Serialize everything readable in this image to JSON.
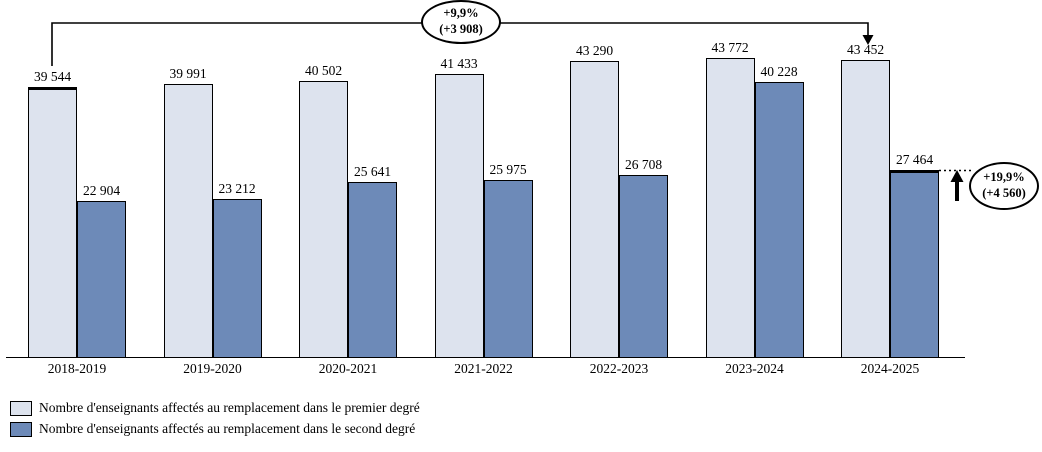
{
  "chart_data": {
    "type": "bar",
    "title": "",
    "xlabel": "",
    "ylabel": "",
    "ylim": [
      0,
      45000
    ],
    "grid": false,
    "legend_position": "bottom-left",
    "categories": [
      "2018-2019",
      "2019-2020",
      "2020-2021",
      "2021-2022",
      "2022-2023",
      "2023-2024",
      "2024-2025"
    ],
    "series": [
      {
        "name": "Nombre d'enseignants affectés au remplacement dans le premier degré",
        "color": "#dde3ee",
        "values": [
          39544,
          39991,
          40502,
          41433,
          43290,
          43772,
          43452
        ],
        "labels": [
          "39 544",
          "39 991",
          "40 502",
          "41 433",
          "43 290",
          "43 772",
          "43 452"
        ]
      },
      {
        "name": "Nombre d'enseignants affectés au remplacement dans le second degré",
        "color": "#6d8ab8",
        "values": [
          22904,
          23212,
          25641,
          25975,
          26708,
          40228,
          27464
        ],
        "labels": [
          "22 904",
          "23 212",
          "25 641",
          "25 975",
          "26 708",
          "40 228",
          "27 464"
        ]
      }
    ],
    "annotations": [
      {
        "id": "premier-degre-evolution",
        "line1": "+9,9%",
        "line2": "(+3 908)",
        "from_category": "2018-2019",
        "to_category": "2024-2025",
        "series": "premier degré"
      },
      {
        "id": "second-degre-evolution",
        "line1": "+19,9%",
        "line2": "(+4 560)",
        "from_category": "2018-2019",
        "to_category": "2024-2025",
        "series": "second degré"
      }
    ]
  }
}
